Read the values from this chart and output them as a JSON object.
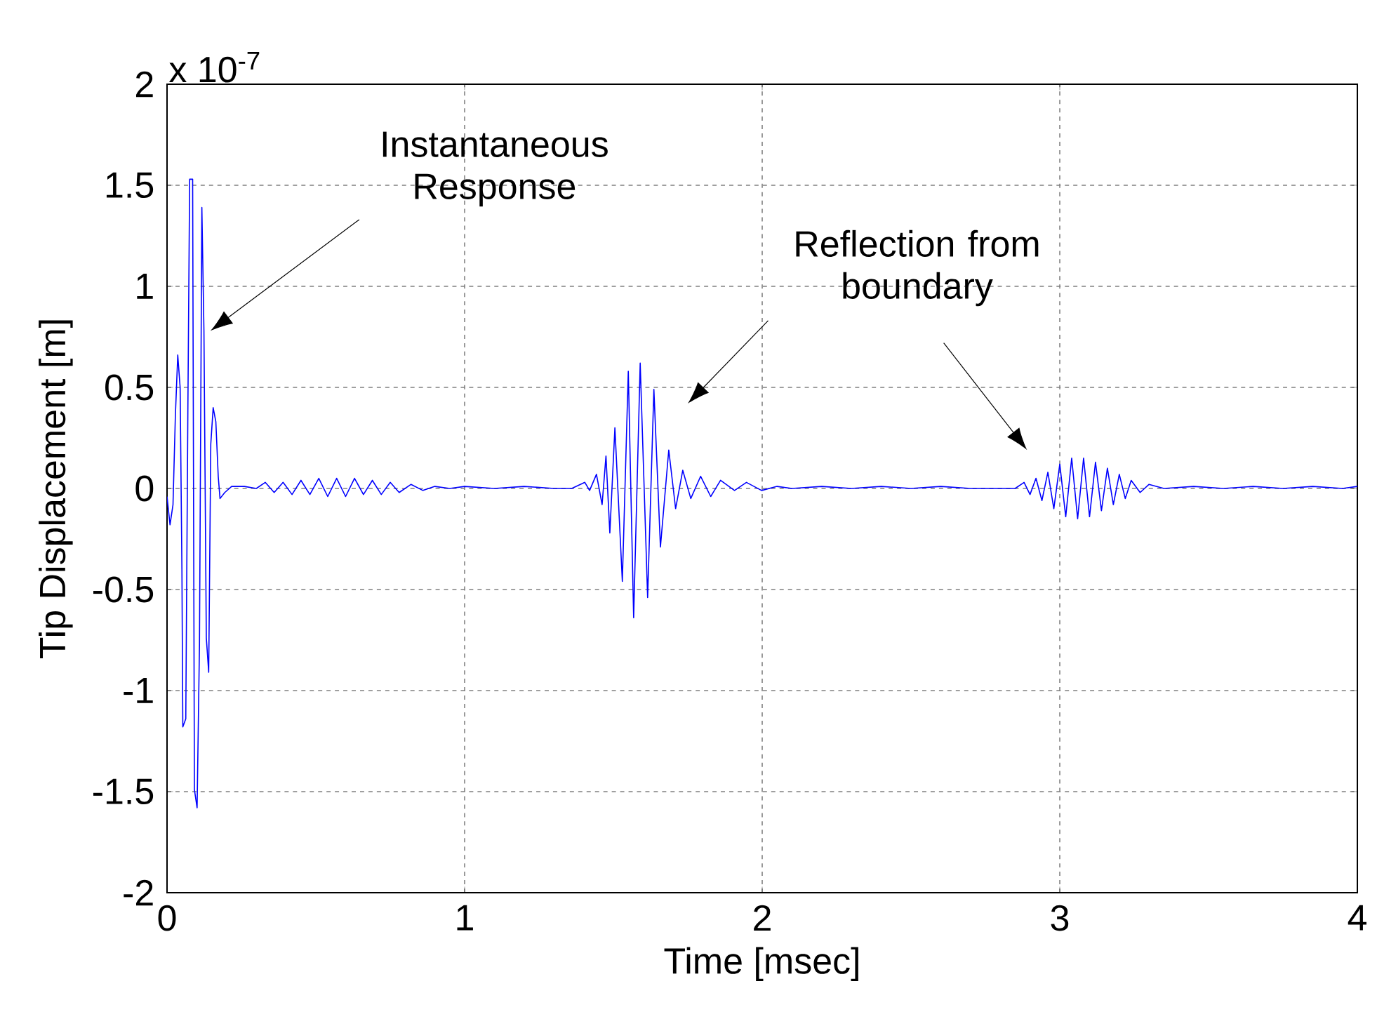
{
  "chart_data": {
    "type": "line",
    "xlabel": "Time [msec]",
    "ylabel": "Tip Displacement [m]",
    "xlim": [
      0,
      4
    ],
    "ylim": [
      -2,
      2
    ],
    "xticks": [
      0,
      1,
      2,
      3,
      4
    ],
    "yticks": [
      -2,
      -1.5,
      -1,
      -0.5,
      0,
      0.5,
      1,
      1.5,
      2
    ],
    "grid": true,
    "legend": false,
    "marker": "none",
    "line_style": "solid",
    "annotations": [
      "x 10$^{-7}$",
      "Instantaneous Response",
      "Reflection from boundary"
    ],
    "series": [
      {
        "color": "#0000ff",
        "x": [
          0,
          0.01,
          0.02,
          0.028,
          0.036,
          0.044,
          0.05,
          0.053,
          0.063,
          0.07,
          0.076,
          0.086,
          0.092,
          0.101,
          0.109,
          0.117,
          0.124,
          0.132,
          0.14,
          0.147,
          0.155,
          0.164,
          0.172,
          0.178,
          0.194,
          0.217,
          0.26,
          0.3,
          0.33,
          0.36,
          0.39,
          0.42,
          0.45,
          0.48,
          0.51,
          0.54,
          0.57,
          0.6,
          0.63,
          0.66,
          0.69,
          0.72,
          0.75,
          0.78,
          0.82,
          0.86,
          0.9,
          0.95,
          1.0,
          1.1,
          1.2,
          1.3,
          1.36,
          1.404,
          1.42,
          1.443,
          1.462,
          1.475,
          1.488,
          1.505,
          1.53,
          1.55,
          1.568,
          1.59,
          1.615,
          1.636,
          1.658,
          1.686,
          1.709,
          1.733,
          1.76,
          1.793,
          1.827,
          1.86,
          1.907,
          1.947,
          1.998,
          2.05,
          2.1,
          2.2,
          2.3,
          2.4,
          2.5,
          2.6,
          2.7,
          2.8,
          2.85,
          2.88,
          2.9,
          2.92,
          2.94,
          2.96,
          2.98,
          3.0,
          3.02,
          3.04,
          3.06,
          3.08,
          3.1,
          3.12,
          3.14,
          3.16,
          3.18,
          3.2,
          3.22,
          3.24,
          3.27,
          3.3,
          3.35,
          3.45,
          3.55,
          3.65,
          3.75,
          3.85,
          3.95,
          4.0
        ],
        "values": [
          -0.04,
          -0.18,
          -0.08,
          0.36,
          0.66,
          0.5,
          -0.4,
          -1.18,
          -1.14,
          0.39,
          1.53,
          1.53,
          -1.49,
          -1.58,
          -0.77,
          1.39,
          0.78,
          -0.74,
          -0.91,
          0.22,
          0.4,
          0.33,
          0.06,
          -0.05,
          -0.02,
          0.01,
          0.01,
          0.0,
          0.03,
          -0.02,
          0.03,
          -0.03,
          0.04,
          -0.03,
          0.05,
          -0.04,
          0.05,
          -0.04,
          0.05,
          -0.03,
          0.04,
          -0.03,
          0.03,
          -0.02,
          0.02,
          -0.01,
          0.01,
          0.0,
          0.01,
          0.0,
          0.01,
          0.0,
          0.0,
          0.03,
          -0.01,
          0.07,
          -0.08,
          0.16,
          -0.22,
          0.3,
          -0.46,
          0.58,
          -0.64,
          0.62,
          -0.54,
          0.49,
          -0.29,
          0.19,
          -0.1,
          0.09,
          -0.05,
          0.06,
          -0.04,
          0.04,
          -0.01,
          0.03,
          -0.01,
          0.01,
          0.0,
          0.01,
          0.0,
          0.01,
          0.0,
          0.01,
          0.0,
          0.0,
          0.0,
          0.03,
          -0.03,
          0.05,
          -0.06,
          0.08,
          -0.1,
          0.12,
          -0.14,
          0.15,
          -0.15,
          0.15,
          -0.14,
          0.13,
          -0.11,
          0.1,
          -0.08,
          0.07,
          -0.05,
          0.04,
          -0.02,
          0.02,
          0.0,
          0.01,
          0.0,
          0.01,
          0.0,
          0.01,
          0.0,
          0.01
        ]
      }
    ]
  }
}
